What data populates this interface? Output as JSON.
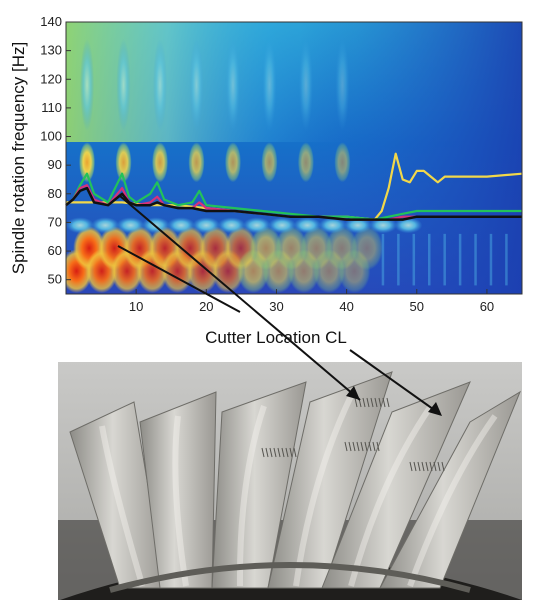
{
  "chart_data": {
    "type": "heatmap",
    "title": "",
    "xlabel": "Cutter Location CL",
    "ylabel": "Spindle rotation frequency [Hz]",
    "xlim": [
      0,
      65
    ],
    "ylim": [
      45,
      140
    ],
    "xticks": [
      10,
      20,
      30,
      40,
      50,
      60
    ],
    "yticks": [
      50,
      60,
      70,
      80,
      90,
      100,
      110,
      120,
      130,
      140
    ],
    "colormap": "jet",
    "grid": false,
    "series": [
      {
        "color": "#f2d84a",
        "x": [
          0,
          4,
          8,
          12,
          16,
          20,
          24,
          28,
          32,
          36,
          40,
          44,
          45,
          46,
          47,
          48,
          49,
          50,
          51,
          52,
          53,
          54,
          56,
          60,
          65
        ],
        "y": [
          77,
          77,
          77,
          76,
          76,
          75,
          74,
          73,
          72,
          72,
          72,
          71,
          74,
          82,
          94,
          85,
          84,
          88,
          88,
          86,
          84,
          86,
          86,
          86,
          87
        ]
      },
      {
        "color": "#22c25a",
        "x": [
          0,
          1,
          2,
          3,
          4,
          6,
          7,
          8,
          9,
          10,
          12,
          13,
          14,
          16,
          18,
          19,
          20,
          24,
          28,
          32,
          36,
          40,
          44,
          46,
          48,
          50,
          55,
          60,
          65
        ],
        "y": [
          76,
          78,
          83,
          87,
          80,
          77,
          82,
          87,
          79,
          77,
          80,
          84,
          78,
          76,
          77,
          81,
          76,
          75,
          74,
          73,
          72,
          72,
          71,
          72,
          73,
          74,
          74,
          74,
          74
        ]
      },
      {
        "color": "#d6307a",
        "x": [
          0,
          1,
          2,
          3,
          4,
          6,
          7,
          8,
          9,
          10,
          12,
          13,
          14,
          16,
          18,
          19,
          20,
          24,
          28,
          32,
          36,
          40,
          44,
          46,
          48,
          50,
          55,
          60,
          65
        ],
        "y": [
          76,
          78,
          82,
          83,
          78,
          76,
          79,
          82,
          77,
          76,
          77,
          79,
          76,
          75,
          75,
          77,
          75,
          74,
          73,
          72,
          72,
          71,
          71,
          71,
          72,
          72,
          72,
          72,
          72
        ]
      },
      {
        "color": "#111111",
        "x": [
          0,
          1,
          2,
          3,
          4,
          6,
          7,
          8,
          9,
          10,
          12,
          13,
          14,
          16,
          18,
          20,
          24,
          28,
          32,
          36,
          40,
          44,
          46,
          48,
          50,
          55,
          60,
          65
        ],
        "y": [
          76,
          78,
          81,
          82,
          77,
          76,
          78,
          80,
          77,
          76,
          76,
          77,
          76,
          75,
          75,
          74,
          74,
          73,
          72,
          72,
          71,
          71,
          71,
          71,
          72,
          72,
          72,
          72
        ]
      }
    ]
  },
  "photo": {
    "subject": "bladed-disk-photo"
  }
}
